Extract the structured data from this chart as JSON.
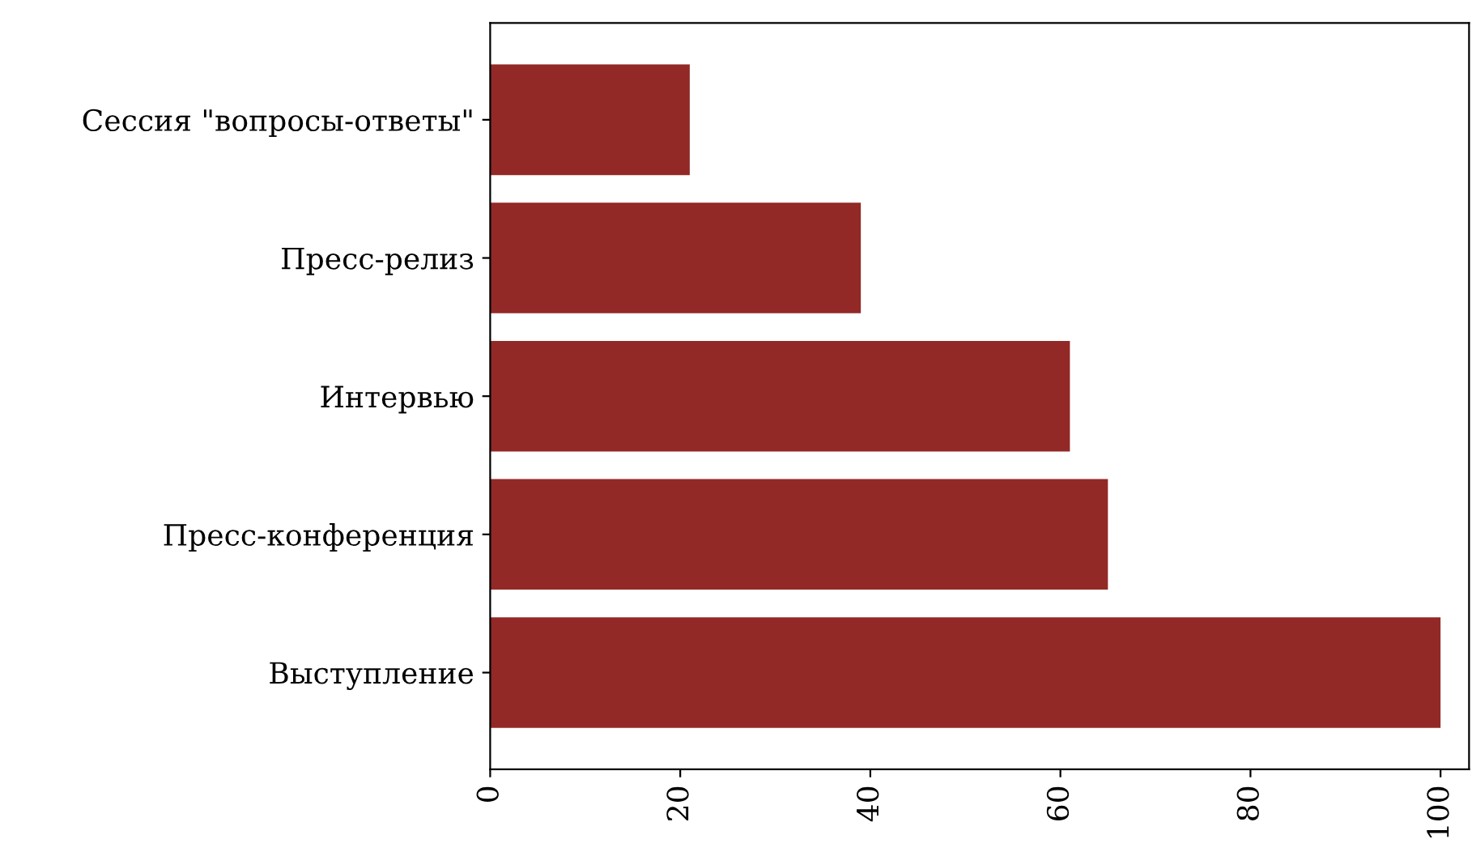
{
  "chart_data": {
    "type": "bar",
    "orientation": "horizontal",
    "categories": [
      "Сессия \"вопросы-ответы\"",
      "Пресс-релиз",
      "Интервью",
      "Пресс-конференция",
      "Выступление"
    ],
    "values": [
      21,
      39,
      61,
      65,
      100
    ],
    "color": "#922927",
    "xlim": [
      0,
      103
    ],
    "xticks": [
      0,
      20,
      40,
      60,
      80,
      100
    ],
    "grid": false,
    "legend": false
  }
}
